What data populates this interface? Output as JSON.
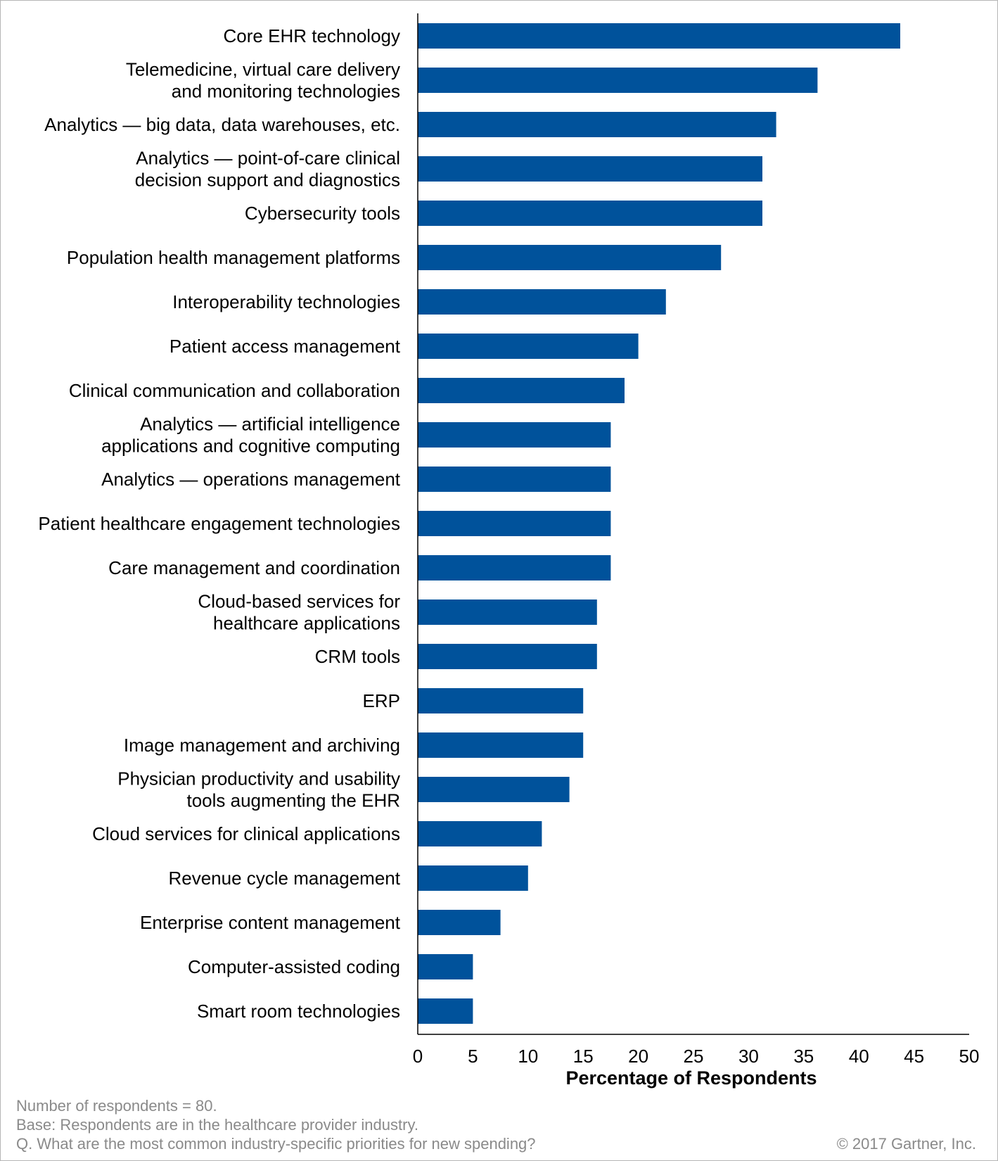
{
  "chart_data": {
    "type": "bar",
    "orientation": "horizontal",
    "categories": [
      [
        "Core EHR technology"
      ],
      [
        "Telemedicine, virtual care delivery",
        "and monitoring technologies"
      ],
      [
        "Analytics — big data, data warehouses, etc."
      ],
      [
        "Analytics — point-of-care clinical",
        "decision support and diagnostics"
      ],
      [
        "Cybersecurity tools"
      ],
      [
        "Population health management platforms"
      ],
      [
        "Interoperability technologies"
      ],
      [
        "Patient access management"
      ],
      [
        "Clinical communication and collaboration"
      ],
      [
        "Analytics — artificial intelligence",
        "applications and cognitive computing"
      ],
      [
        "Analytics — operations management"
      ],
      [
        "Patient healthcare engagement technologies"
      ],
      [
        "Care management and coordination"
      ],
      [
        "Cloud-based services for",
        "healthcare applications"
      ],
      [
        "CRM tools"
      ],
      [
        "ERP"
      ],
      [
        "Image management and archiving"
      ],
      [
        "Physician productivity and usability",
        "tools augmenting the EHR"
      ],
      [
        "Cloud services for clinical applications"
      ],
      [
        "Revenue cycle management"
      ],
      [
        "Enterprise content management"
      ],
      [
        "Computer-assisted coding"
      ],
      [
        "Smart room technologies"
      ]
    ],
    "values": [
      43.75,
      36.25,
      32.5,
      31.25,
      31.25,
      27.5,
      22.5,
      20,
      18.75,
      17.5,
      17.5,
      17.5,
      17.5,
      16.25,
      16.25,
      15,
      15,
      13.75,
      11.25,
      10,
      7.5,
      5,
      5
    ],
    "xlabel": "Percentage of Respondents",
    "ylabel": "",
    "xlim": [
      0,
      50
    ],
    "xticks": [
      "0",
      "5",
      "10",
      "15",
      "20",
      "25",
      "30",
      "35",
      "40",
      "45",
      "50"
    ],
    "bar_color": "#00529b",
    "grid": false,
    "legend": "none"
  },
  "footnotes": [
    "Number  of respondents  = 80.",
    "Base: Respondents  are in the  healthcare provider  industry.",
    "Q. What are the  most common  industry-specific priorities for new  spending?"
  ],
  "copyright": "© 2017 Gartner, Inc."
}
